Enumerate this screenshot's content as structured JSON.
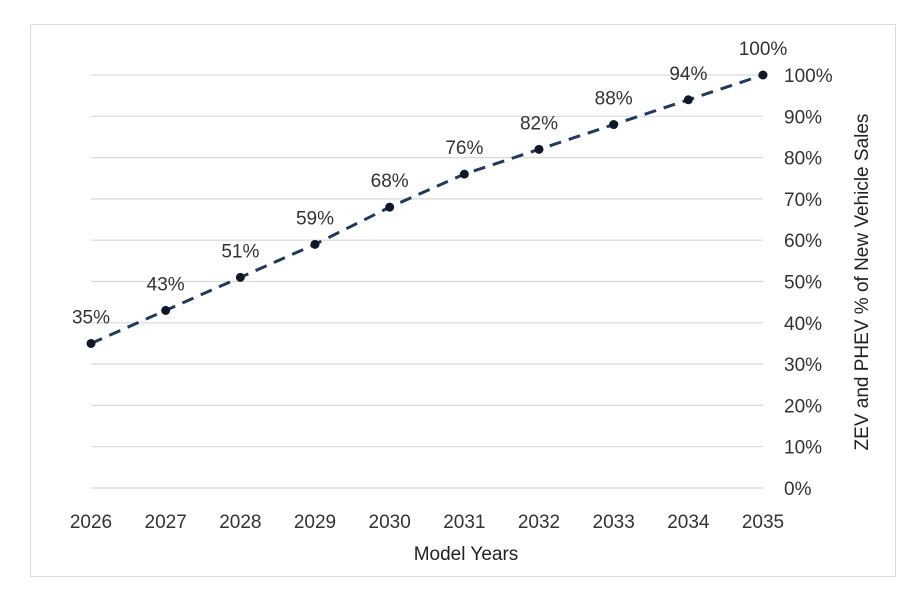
{
  "chart_data": {
    "type": "line",
    "title": "",
    "xlabel": "Model Years",
    "ylabel": "ZEV and PHEV % of New Vehicle Sales",
    "categories": [
      "2026",
      "2027",
      "2028",
      "2029",
      "2030",
      "2031",
      "2032",
      "2033",
      "2034",
      "2035"
    ],
    "series": [
      {
        "values": [
          35,
          43,
          51,
          59,
          68,
          76,
          82,
          88,
          94,
          100
        ],
        "labels": [
          "35%",
          "43%",
          "51%",
          "59%",
          "68%",
          "76%",
          "82%",
          "88%",
          "94%",
          "100%"
        ],
        "color": "#1f3a5f",
        "line_style": "dashed",
        "marker_color": "#111827"
      }
    ],
    "y_ticks": [
      "0%",
      "10%",
      "20%",
      "30%",
      "40%",
      "50%",
      "60%",
      "70%",
      "80%",
      "90%",
      "100%"
    ],
    "ylim": [
      0,
      100
    ],
    "y_axis_side": "right",
    "grid": true,
    "grid_color": "#d9d9d9",
    "legend": "none"
  }
}
